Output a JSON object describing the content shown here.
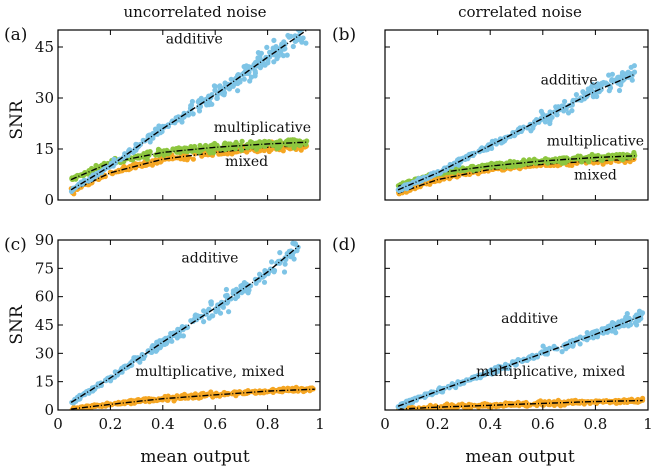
{
  "figure": {
    "column_titles": [
      "uncorrelated noise",
      "correlated noise"
    ],
    "ylabel": "SNR",
    "xlabel": "mean output"
  },
  "colors": {
    "additive": "#7ec4e6",
    "multiplicative": "#8dc63f",
    "mixed": "#f5a623",
    "fit": "#000000"
  },
  "chart_data": [
    {
      "panel": "(a)",
      "type": "scatter",
      "xlim": [
        0,
        1
      ],
      "ylim": [
        0,
        50
      ],
      "yticks": [
        0,
        15,
        30,
        45
      ],
      "xticks": [],
      "annotations": [
        "additive",
        "multiplicative",
        "mixed"
      ],
      "series": [
        {
          "name": "additive",
          "x": [
            0.05,
            0.2,
            0.4,
            0.6,
            0.8,
            0.95
          ],
          "y": [
            3,
            10,
            21,
            31,
            42,
            50
          ]
        },
        {
          "name": "multiplicative",
          "x": [
            0.05,
            0.2,
            0.4,
            0.6,
            0.8,
            0.95
          ],
          "y": [
            6,
            11,
            14,
            15.5,
            16.5,
            17
          ]
        },
        {
          "name": "mixed",
          "x": [
            0.05,
            0.2,
            0.4,
            0.6,
            0.8,
            0.95
          ],
          "y": [
            2.5,
            8,
            12,
            14,
            15.5,
            16
          ]
        }
      ]
    },
    {
      "panel": "(b)",
      "type": "scatter",
      "xlim": [
        0,
        1
      ],
      "ylim": [
        0,
        50
      ],
      "yticks": [],
      "xticks": [],
      "annotations": [
        "additive",
        "multiplicative",
        "mixed"
      ],
      "series": [
        {
          "name": "additive",
          "x": [
            0.05,
            0.2,
            0.4,
            0.6,
            0.8,
            0.95
          ],
          "y": [
            3,
            8,
            16,
            24,
            32,
            37
          ]
        },
        {
          "name": "multiplicative",
          "x": [
            0.05,
            0.2,
            0.4,
            0.6,
            0.8,
            0.95
          ],
          "y": [
            4,
            8,
            10,
            11.5,
            12.5,
            13
          ]
        },
        {
          "name": "mixed",
          "x": [
            0.05,
            0.2,
            0.4,
            0.6,
            0.8,
            0.95
          ],
          "y": [
            2,
            6,
            9,
            10.5,
            11.5,
            12
          ]
        }
      ]
    },
    {
      "panel": "(c)",
      "type": "scatter",
      "xlim": [
        0,
        1
      ],
      "ylim": [
        0,
        90
      ],
      "yticks": [
        0,
        15,
        30,
        45,
        60,
        75,
        90
      ],
      "xticks": [
        0,
        0.2,
        0.4,
        0.6,
        0.8,
        1
      ],
      "annotations": [
        "additive",
        "multiplicative, mixed"
      ],
      "series": [
        {
          "name": "additive",
          "x": [
            0.05,
            0.2,
            0.4,
            0.6,
            0.8,
            0.92
          ],
          "y": [
            4,
            17,
            36,
            54,
            73,
            87
          ]
        },
        {
          "name": "multiplicative, mixed",
          "x": [
            0.05,
            0.2,
            0.4,
            0.6,
            0.8,
            0.98
          ],
          "y": [
            0.5,
            3,
            6,
            8,
            10,
            11
          ]
        }
      ]
    },
    {
      "panel": "(d)",
      "type": "scatter",
      "xlim": [
        0,
        1
      ],
      "ylim": [
        0,
        90
      ],
      "yticks": [],
      "xticks": [
        0,
        0.2,
        0.4,
        0.6,
        0.8,
        1
      ],
      "annotations": [
        "additive",
        "multiplicative, mixed"
      ],
      "series": [
        {
          "name": "additive",
          "x": [
            0.05,
            0.2,
            0.4,
            0.6,
            0.8,
            0.98
          ],
          "y": [
            2,
            10,
            20,
            30,
            40,
            50
          ]
        },
        {
          "name": "multiplicative, mixed",
          "x": [
            0.05,
            0.2,
            0.4,
            0.6,
            0.8,
            0.98
          ],
          "y": [
            0.5,
            1.5,
            2.5,
            3.5,
            4.5,
            5
          ]
        }
      ]
    }
  ]
}
